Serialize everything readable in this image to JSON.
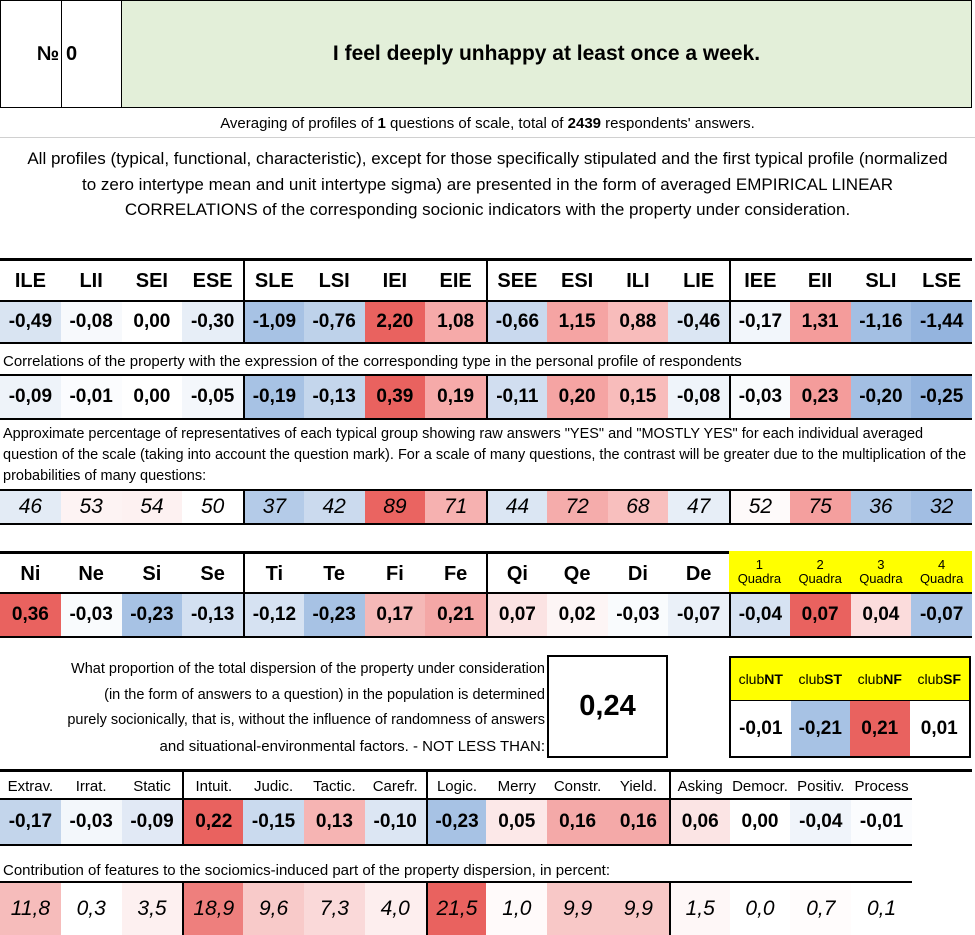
{
  "header": {
    "number_label": "№",
    "number_value": "0",
    "title": "I feel deeply unhappy at least once a week."
  },
  "averaging": {
    "pre": "Averaging of profiles of ",
    "questions": "1",
    "mid": " questions of scale, total of ",
    "respondents": "2439",
    "post": " respondents' answers."
  },
  "description": "All profiles (typical, functional, characteristic), except for those specifically stipulated and the first typical profile (normalized to zero intertype mean and unit intertype sigma) are presented in the form of averaged EMPIRICAL LINEAR CORRELATIONS of the corresponding socionic indicators with the property under consideration.",
  "types": {
    "labels": [
      "ILE",
      "LII",
      "SEI",
      "ESE",
      "SLE",
      "LSI",
      "IEI",
      "EIE",
      "SEE",
      "ESI",
      "ILI",
      "LIE",
      "IEE",
      "EII",
      "SLI",
      "LSE"
    ],
    "values": [
      "-0,49",
      "-0,08",
      "0,00",
      "-0,30",
      "-1,09",
      "-0,76",
      "2,20",
      "1,08",
      "-0,66",
      "1,15",
      "0,88",
      "-0,46",
      "-0,17",
      "1,31",
      "-1,16",
      "-1,44"
    ],
    "colors": [
      "#d9e4f2",
      "#f7f9fc",
      "#ffffff",
      "#e7eef7",
      "#a7c2e4",
      "#bed2ea",
      "#e9625f",
      "#f6aaa9",
      "#c9d9ee",
      "#f5a4a3",
      "#f8bcbb",
      "#dbe6f3",
      "#f2f6fb",
      "#f49c9b",
      "#a3bfe3",
      "#94b4de"
    ]
  },
  "correlations": {
    "note": "Correlations of the property with the expression of the corresponding type in the personal profile of respondents",
    "values": [
      "-0,09",
      "-0,01",
      "0,00",
      "-0,05",
      "-0,19",
      "-0,13",
      "0,39",
      "0,19",
      "-0,11",
      "0,20",
      "0,15",
      "-0,08",
      "-0,03",
      "0,23",
      "-0,20",
      "-0,25"
    ],
    "colors": [
      "#eef3f9",
      "#fbfcfe",
      "#ffffff",
      "#f4f7fb",
      "#a7c2e4",
      "#c4d6ec",
      "#e9625f",
      "#f6aaa9",
      "#d1def0",
      "#f5a4a3",
      "#f8bcbb",
      "#eff4fa",
      "#f9fbfd",
      "#f49c9b",
      "#a3bfe3",
      "#94b4de"
    ]
  },
  "percentages": {
    "note": "Approximate percentage of representatives of each typical group showing raw answers \"YES\" and \"MOSTLY YES\" for each individual averaged question of the scale (taking into account the question mark). For a scale of many questions, the contrast will be greater due to the multiplication of the probabilities of many questions:",
    "values": [
      "46",
      "53",
      "54",
      "50",
      "37",
      "42",
      "89",
      "71",
      "44",
      "72",
      "68",
      "47",
      "52",
      "75",
      "36",
      "32"
    ],
    "colors": [
      "#e3ebf5",
      "#fdf3f3",
      "#fdf1f1",
      "#ffffff",
      "#b4cbe8",
      "#cbdaee",
      "#ea6461",
      "#f6b1b0",
      "#dbe6f3",
      "#f5acab",
      "#f8bfbe",
      "#e7eef7",
      "#fefafa",
      "#f49f9e",
      "#afc7e6",
      "#a2bee3"
    ]
  },
  "functions": {
    "labels": [
      "Ni",
      "Ne",
      "Si",
      "Se",
      "Ti",
      "Te",
      "Fi",
      "Fe",
      "Qi",
      "Qe",
      "Di",
      "De"
    ],
    "values": [
      "0,36",
      "-0,03",
      "-0,23",
      "-0,13",
      "-0,12",
      "-0,23",
      "0,17",
      "0,21",
      "0,07",
      "0,02",
      "-0,03",
      "-0,07"
    ],
    "colors": [
      "#e9625f",
      "#f9fbfd",
      "#a7c2e4",
      "#d3e0f1",
      "#d6e2f2",
      "#a7c2e4",
      "#f5b8b7",
      "#f4a7a6",
      "#fbe3e3",
      "#fdf5f5",
      "#f9fbfd",
      "#eaf0f8"
    ]
  },
  "quadras": {
    "numbers": [
      "1",
      "2",
      "3",
      "4"
    ],
    "word": "Quadra",
    "values": [
      "-0,04",
      "0,07",
      "0,04",
      "-0,07"
    ],
    "colors": [
      "#d6e2f2",
      "#e9625f",
      "#fbdcdc",
      "#a9c3e5"
    ],
    "header_bg": "#ffff00"
  },
  "dispersion": {
    "text_lines": [
      "What proportion of the total dispersion of the property under consideration",
      "(in the form of answers to a question) in the population is determined",
      "purely socionically, that is, without the influence of randomness of answers",
      "and situational-environmental factors. - NOT LESS THAN:"
    ],
    "value": "0,24",
    "value_bg": "#ffff00"
  },
  "clubs": {
    "labels": [
      {
        "prefix": "club",
        "bold": "NT"
      },
      {
        "prefix": "club",
        "bold": "ST"
      },
      {
        "prefix": "club",
        "bold": "NF"
      },
      {
        "prefix": "club",
        "bold": "SF"
      }
    ],
    "values": [
      "-0,01",
      "-0,21",
      "0,21",
      "0,01"
    ],
    "colors": [
      "#ffffff",
      "#a7c2e4",
      "#e9625f",
      "#ffffff"
    ],
    "header_bg": "#ffff00"
  },
  "traits": {
    "labels": [
      "Extrav.",
      "Irrat.",
      "Static",
      "Intuit.",
      "Judic.",
      "Tactic.",
      "Carefr.",
      "Logic.",
      "Merry",
      "Constr.",
      "Yield.",
      "Asking",
      "Democr.",
      "Positiv.",
      "Process"
    ],
    "values": [
      "-0,17",
      "-0,03",
      "-0,09",
      "0,22",
      "-0,15",
      "0,13",
      "-0,10",
      "-0,23",
      "0,05",
      "0,16",
      "0,16",
      "0,06",
      "0,00",
      "-0,04",
      "-0,01"
    ],
    "colors": [
      "#c3d5eb",
      "#f3f7fb",
      "#e1e9f5",
      "#e9625f",
      "#cadaee",
      "#f6b4b3",
      "#dce6f3",
      "#a7c2e4",
      "#fce8e8",
      "#f4a9a8",
      "#f4a9a8",
      "#fbe4e4",
      "#ffffff",
      "#f0f4fa",
      "#fbfcfe"
    ]
  },
  "contribution": {
    "note": "Contribution of features to the sociomics-induced part of the property dispersion, in percent:",
    "values": [
      "11,8",
      "0,3",
      "3,5",
      "18,9",
      "9,6",
      "7,3",
      "4,0",
      "21,5",
      "1,0",
      "9,9",
      "9,9",
      "1,5",
      "0,0",
      "0,7",
      "0,1"
    ],
    "colors": [
      "#f6bcbb",
      "#ffffff",
      "#fdf0f0",
      "#ee7f7d",
      "#f8cac9",
      "#fad9d9",
      "#fdeeee",
      "#e9625f",
      "#fffafa",
      "#f8c8c7",
      "#f8c8c7",
      "#fef7f7",
      "#ffffff",
      "#fffcfc",
      "#ffffff"
    ]
  }
}
